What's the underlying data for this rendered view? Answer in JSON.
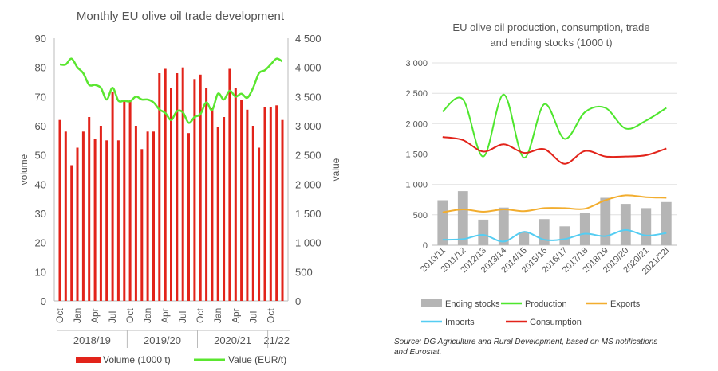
{
  "chart_data": [
    {
      "type": "bar+line",
      "title": "Monthly EU olive oil trade development",
      "ylabel": "volume",
      "y2label": "value",
      "ylim": [
        0,
        90
      ],
      "y2lim": [
        0,
        4500
      ],
      "yticks": [
        "0",
        "10",
        "20",
        "30",
        "40",
        "50",
        "60",
        "70",
        "80",
        "90"
      ],
      "y2ticks": [
        "0",
        "500",
        "1 000",
        "1 500",
        "2 000",
        "2 500",
        "3 000",
        "3 500",
        "4 000",
        "4 500"
      ],
      "x_tick_labels": [
        {
          "index": 0,
          "label": "Oct"
        },
        {
          "index": 3,
          "label": "Jan"
        },
        {
          "index": 6,
          "label": "Apr"
        },
        {
          "index": 9,
          "label": "Jul"
        },
        {
          "index": 12,
          "label": "Oct"
        },
        {
          "index": 15,
          "label": "Jan"
        },
        {
          "index": 18,
          "label": "Apr"
        },
        {
          "index": 21,
          "label": "Jul"
        },
        {
          "index": 24,
          "label": "Oct"
        },
        {
          "index": 27,
          "label": "Jan"
        },
        {
          "index": 30,
          "label": "Apr"
        },
        {
          "index": 33,
          "label": "Jul"
        },
        {
          "index": 36,
          "label": "Oct"
        }
      ],
      "periods": [
        {
          "label": "2018/19",
          "start": 0,
          "end": 11
        },
        {
          "label": "2019/20",
          "start": 12,
          "end": 23
        },
        {
          "label": "2020/21",
          "start": 24,
          "end": 35
        },
        {
          "label": "21/22",
          "start": 36,
          "end": 38
        }
      ],
      "series": [
        {
          "name": "Volume (1000 t)",
          "type": "bar",
          "color": "#e2231a",
          "values": [
            62,
            58,
            46.5,
            52.5,
            58,
            63,
            55.5,
            60,
            55,
            71.5,
            55,
            69,
            69,
            60,
            52,
            58,
            58,
            78,
            79.5,
            73,
            78,
            80,
            57.5,
            76,
            77.5,
            73,
            66,
            59.5,
            63,
            79.5,
            73,
            69,
            65.5,
            60,
            52.5,
            66.5,
            66.5,
            67,
            62
          ]
        },
        {
          "name": "Value (EUR/t)",
          "type": "line",
          "axis": "right",
          "color": "#5ae62f",
          "values": [
            4050,
            4050,
            4150,
            4000,
            3900,
            3700,
            3700,
            3650,
            3450,
            3650,
            3430,
            3430,
            3420,
            3500,
            3450,
            3450,
            3400,
            3280,
            3220,
            3100,
            3250,
            3230,
            3050,
            3150,
            3200,
            3400,
            3270,
            3550,
            3450,
            3600,
            3500,
            3550,
            3480,
            3650,
            3900,
            3950,
            4050,
            4150,
            4100
          ]
        }
      ]
    },
    {
      "type": "bar+line",
      "title": "EU olive oil production, consumption, trade and ending stocks (1000 t)",
      "title_lines": [
        "EU olive oil production, consumption, trade",
        "and ending stocks (1000 t)"
      ],
      "ylim": [
        0,
        3000
      ],
      "yticks": [
        "0",
        "500",
        "1 000",
        "1 500",
        "2 000",
        "2 500",
        "3 000"
      ],
      "categories": [
        "2010/11",
        "2011/12",
        "2012/13",
        "2013/14",
        "2014/15",
        "2015/16",
        "2016/17",
        "2017/18",
        "2018/19",
        "2019/20",
        "2020/21",
        "2021/22f"
      ],
      "series": [
        {
          "name": "Ending stocks",
          "type": "bar",
          "color": "#b5b5b5",
          "values": [
            740,
            890,
            420,
            620,
            210,
            430,
            310,
            530,
            780,
            680,
            610,
            710
          ]
        },
        {
          "name": "Production",
          "type": "line",
          "color": "#4ee62d",
          "values": [
            2200,
            2400,
            1460,
            2480,
            1440,
            2320,
            1750,
            2190,
            2260,
            1920,
            2050,
            2260
          ]
        },
        {
          "name": "Exports",
          "type": "line",
          "color": "#f2ad2e",
          "values": [
            540,
            590,
            550,
            590,
            560,
            610,
            610,
            600,
            740,
            820,
            790,
            780
          ]
        },
        {
          "name": "Imports",
          "type": "line",
          "color": "#55cdf2",
          "values": [
            90,
            100,
            170,
            60,
            220,
            90,
            100,
            190,
            150,
            250,
            160,
            200
          ]
        },
        {
          "name": "Consumption",
          "type": "line",
          "color": "#e2231a",
          "values": [
            1780,
            1730,
            1540,
            1660,
            1520,
            1580,
            1340,
            1550,
            1460,
            1460,
            1480,
            1590
          ]
        }
      ],
      "legend_order": [
        "Ending stocks",
        "Production",
        "Exports",
        "Imports",
        "Consumption"
      ]
    }
  ],
  "source_note": "Source: DG Agriculture and Rural Development, based on MS notifications and Eurostat."
}
